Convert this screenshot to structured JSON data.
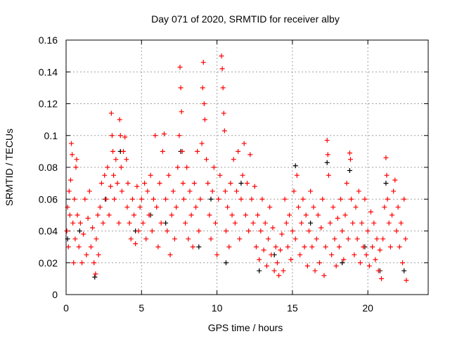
{
  "chart_data": {
    "type": "scatter",
    "title": "Day 071 of 2020, SRMTID for receiver alby",
    "xlabel": "GPS time / hours",
    "ylabel": "SRMTID / TECUs",
    "xlim": [
      0,
      24
    ],
    "ylim": [
      0,
      0.16
    ],
    "xticks": [
      0,
      5,
      10,
      15,
      20
    ],
    "yticks": [
      0,
      0.02,
      0.04,
      0.06,
      0.08,
      0.1,
      0.12,
      0.14,
      0.16
    ],
    "ytick_labels": [
      "0",
      "0.02",
      "0.04",
      "0.06",
      "0.08",
      "0.1",
      "0.12",
      "0.14",
      "0.16"
    ],
    "grid": true,
    "legend": "none",
    "series": [
      {
        "name": "series-black",
        "color": "#000000",
        "points": [
          [
            0.1,
            0.035
          ],
          [
            0.9,
            0.04
          ],
          [
            1.9,
            0.011
          ],
          [
            2.6,
            0.06
          ],
          [
            3.6,
            0.09
          ],
          [
            4.6,
            0.04
          ],
          [
            5.6,
            0.05
          ],
          [
            6.6,
            0.045
          ],
          [
            7.6,
            0.09
          ],
          [
            8.8,
            0.03
          ],
          [
            9.6,
            0.06
          ],
          [
            10.6,
            0.02
          ],
          [
            11.6,
            0.07
          ],
          [
            12.8,
            0.015
          ],
          [
            13.8,
            0.025
          ],
          [
            15.2,
            0.081
          ],
          [
            16.2,
            0.045
          ],
          [
            17.3,
            0.083
          ],
          [
            18.3,
            0.02
          ],
          [
            18.8,
            0.078
          ],
          [
            19.8,
            0.03
          ],
          [
            20.8,
            0.015
          ],
          [
            21.2,
            0.07
          ],
          [
            22.4,
            0.015
          ]
        ]
      },
      {
        "name": "series-red",
        "color": "#ff0000",
        "points": [
          [
            0.05,
            0.04
          ],
          [
            0.1,
            0.055
          ],
          [
            0.15,
            0.03
          ],
          [
            0.2,
            0.065
          ],
          [
            0.25,
            0.05
          ],
          [
            0.3,
            0.072
          ],
          [
            0.35,
            0.095
          ],
          [
            0.4,
            0.088
          ],
          [
            0.45,
            0.045
          ],
          [
            0.5,
            0.02
          ],
          [
            0.55,
            0.06
          ],
          [
            0.6,
            0.035
          ],
          [
            0.65,
            0.08
          ],
          [
            0.7,
            0.085
          ],
          [
            0.75,
            0.05
          ],
          [
            0.85,
            0.03
          ],
          [
            0.95,
            0.045
          ],
          [
            1.05,
            0.02
          ],
          [
            1.15,
            0.038
          ],
          [
            1.25,
            0.06
          ],
          [
            1.35,
            0.025
          ],
          [
            1.45,
            0.048
          ],
          [
            1.55,
            0.065
          ],
          [
            1.65,
            0.03
          ],
          [
            1.75,
            0.042
          ],
          [
            1.85,
            0.02
          ],
          [
            1.95,
            0.013
          ],
          [
            2.0,
            0.035
          ],
          [
            2.1,
            0.05
          ],
          [
            2.15,
            0.025
          ],
          [
            2.25,
            0.055
          ],
          [
            2.35,
            0.07
          ],
          [
            2.45,
            0.045
          ],
          [
            2.55,
            0.075
          ],
          [
            2.65,
            0.06
          ],
          [
            2.75,
            0.08
          ],
          [
            2.85,
            0.05
          ],
          [
            2.95,
            0.068
          ],
          [
            3.0,
            0.114
          ],
          [
            3.05,
            0.1
          ],
          [
            3.1,
            0.09
          ],
          [
            3.15,
            0.075
          ],
          [
            3.2,
            0.06
          ],
          [
            3.3,
            0.085
          ],
          [
            3.4,
            0.07
          ],
          [
            3.5,
            0.045
          ],
          [
            3.55,
            0.11
          ],
          [
            3.6,
            0.1
          ],
          [
            3.65,
            0.08
          ],
          [
            3.7,
            0.065
          ],
          [
            3.8,
            0.09
          ],
          [
            3.9,
            0.099
          ],
          [
            4.0,
            0.085
          ],
          [
            4.05,
            0.055
          ],
          [
            4.1,
            0.07
          ],
          [
            4.2,
            0.045
          ],
          [
            4.3,
            0.035
          ],
          [
            4.4,
            0.06
          ],
          [
            4.5,
            0.05
          ],
          [
            4.6,
            0.032
          ],
          [
            4.7,
            0.068
          ],
          [
            4.8,
            0.04
          ],
          [
            4.9,
            0.055
          ],
          [
            5.0,
            0.06
          ],
          [
            5.1,
            0.045
          ],
          [
            5.2,
            0.07
          ],
          [
            5.3,
            0.035
          ],
          [
            5.4,
            0.065
          ],
          [
            5.5,
            0.05
          ],
          [
            5.6,
            0.075
          ],
          [
            5.7,
            0.04
          ],
          [
            5.8,
            0.06
          ],
          [
            5.9,
            0.1
          ],
          [
            6.0,
            0.055
          ],
          [
            6.1,
            0.03
          ],
          [
            6.2,
            0.07
          ],
          [
            6.3,
            0.045
          ],
          [
            6.4,
            0.09
          ],
          [
            6.5,
            0.101
          ],
          [
            6.6,
            0.06
          ],
          [
            6.7,
            0.04
          ],
          [
            6.8,
            0.075
          ],
          [
            6.9,
            0.025
          ],
          [
            7.0,
            0.05
          ],
          [
            7.1,
            0.065
          ],
          [
            7.2,
            0.035
          ],
          [
            7.3,
            0.055
          ],
          [
            7.4,
            0.08
          ],
          [
            7.5,
            0.1
          ],
          [
            7.55,
            0.143
          ],
          [
            7.6,
            0.13
          ],
          [
            7.65,
            0.115
          ],
          [
            7.7,
            0.09
          ],
          [
            7.75,
            0.07
          ],
          [
            7.8,
            0.06
          ],
          [
            7.9,
            0.045
          ],
          [
            8.0,
            0.08
          ],
          [
            8.1,
            0.035
          ],
          [
            8.2,
            0.065
          ],
          [
            8.3,
            0.05
          ],
          [
            8.4,
            0.03
          ],
          [
            8.5,
            0.07
          ],
          [
            8.6,
            0.055
          ],
          [
            8.7,
            0.09
          ],
          [
            8.8,
            0.04
          ],
          [
            8.9,
            0.06
          ],
          [
            9.0,
            0.095
          ],
          [
            9.05,
            0.13
          ],
          [
            9.1,
            0.146
          ],
          [
            9.15,
            0.12
          ],
          [
            9.2,
            0.11
          ],
          [
            9.3,
            0.085
          ],
          [
            9.4,
            0.07
          ],
          [
            9.5,
            0.05
          ],
          [
            9.6,
            0.035
          ],
          [
            9.7,
            0.065
          ],
          [
            9.8,
            0.08
          ],
          [
            9.9,
            0.045
          ],
          [
            10.0,
            0.025
          ],
          [
            10.1,
            0.06
          ],
          [
            10.2,
            0.075
          ],
          [
            10.3,
            0.15
          ],
          [
            10.35,
            0.142
          ],
          [
            10.4,
            0.13
          ],
          [
            10.45,
            0.114
          ],
          [
            10.5,
            0.103
          ],
          [
            10.55,
            0.065
          ],
          [
            10.6,
            0.04
          ],
          [
            10.7,
            0.055
          ],
          [
            10.8,
            0.03
          ],
          [
            10.9,
            0.07
          ],
          [
            11.0,
            0.05
          ],
          [
            11.1,
            0.085
          ],
          [
            11.2,
            0.045
          ],
          [
            11.3,
            0.065
          ],
          [
            11.4,
            0.09
          ],
          [
            11.5,
            0.035
          ],
          [
            11.6,
            0.06
          ],
          [
            11.7,
            0.075
          ],
          [
            11.8,
            0.095
          ],
          [
            11.9,
            0.05
          ],
          [
            12.0,
            0.07
          ],
          [
            12.1,
            0.04
          ],
          [
            12.2,
            0.088
          ],
          [
            12.3,
            0.06
          ],
          [
            12.4,
            0.045
          ],
          [
            12.5,
            0.068
          ],
          [
            12.6,
            0.03
          ],
          [
            12.7,
            0.05
          ],
          [
            12.8,
            0.022
          ],
          [
            12.9,
            0.04
          ],
          [
            13.0,
            0.06
          ],
          [
            13.1,
            0.028
          ],
          [
            13.2,
            0.045
          ],
          [
            13.3,
            0.018
          ],
          [
            13.4,
            0.035
          ],
          [
            13.5,
            0.055
          ],
          [
            13.6,
            0.025
          ],
          [
            13.7,
            0.042
          ],
          [
            13.8,
            0.015
          ],
          [
            13.9,
            0.03
          ],
          [
            14.0,
            0.02
          ],
          [
            14.1,
            0.012
          ],
          [
            14.2,
            0.028
          ],
          [
            14.3,
            0.038
          ],
          [
            14.4,
            0.015
          ],
          [
            14.5,
            0.06
          ],
          [
            14.6,
            0.045
          ],
          [
            14.7,
            0.03
          ],
          [
            14.8,
            0.05
          ],
          [
            14.9,
            0.022
          ],
          [
            15.0,
            0.04
          ],
          [
            15.1,
            0.065
          ],
          [
            15.2,
            0.035
          ],
          [
            15.3,
            0.075
          ],
          [
            15.4,
            0.055
          ],
          [
            15.5,
            0.025
          ],
          [
            15.6,
            0.045
          ],
          [
            15.7,
            0.06
          ],
          [
            15.8,
            0.03
          ],
          [
            15.9,
            0.05
          ],
          [
            16.0,
            0.018
          ],
          [
            16.1,
            0.04
          ],
          [
            16.2,
            0.065
          ],
          [
            16.3,
            0.03
          ],
          [
            16.4,
            0.055
          ],
          [
            16.5,
            0.015
          ],
          [
            16.6,
            0.035
          ],
          [
            16.7,
            0.05
          ],
          [
            16.8,
            0.02
          ],
          [
            16.9,
            0.042
          ],
          [
            17.0,
            0.06
          ],
          [
            17.1,
            0.012
          ],
          [
            17.2,
            0.03
          ],
          [
            17.3,
            0.097
          ],
          [
            17.35,
            0.088
          ],
          [
            17.4,
            0.075
          ],
          [
            17.5,
            0.045
          ],
          [
            17.6,
            0.025
          ],
          [
            17.7,
            0.055
          ],
          [
            17.8,
            0.035
          ],
          [
            17.9,
            0.018
          ],
          [
            18.0,
            0.048
          ],
          [
            18.1,
            0.03
          ],
          [
            18.2,
            0.06
          ],
          [
            18.3,
            0.04
          ],
          [
            18.4,
            0.022
          ],
          [
            18.5,
            0.05
          ],
          [
            18.6,
            0.07
          ],
          [
            18.7,
            0.035
          ],
          [
            18.8,
            0.089
          ],
          [
            18.85,
            0.085
          ],
          [
            18.9,
            0.06
          ],
          [
            19.0,
            0.045
          ],
          [
            19.1,
            0.025
          ],
          [
            19.2,
            0.055
          ],
          [
            19.3,
            0.035
          ],
          [
            19.4,
            0.065
          ],
          [
            19.5,
            0.02
          ],
          [
            19.6,
            0.045
          ],
          [
            19.7,
            0.03
          ],
          [
            19.8,
            0.06
          ],
          [
            19.9,
            0.025
          ],
          [
            20.0,
            0.04
          ],
          [
            20.1,
            0.018
          ],
          [
            20.2,
            0.052
          ],
          [
            20.3,
            0.03
          ],
          [
            20.4,
            0.045
          ],
          [
            20.5,
            0.022
          ],
          [
            20.6,
            0.035
          ],
          [
            20.7,
            0.015
          ],
          [
            20.8,
            0.028
          ],
          [
            20.9,
            0.01
          ],
          [
            21.0,
            0.035
          ],
          [
            21.1,
            0.055
          ],
          [
            21.2,
            0.086
          ],
          [
            21.25,
            0.075
          ],
          [
            21.3,
            0.06
          ],
          [
            21.4,
            0.045
          ],
          [
            21.5,
            0.03
          ],
          [
            21.6,
            0.05
          ],
          [
            21.7,
            0.065
          ],
          [
            21.8,
            0.072
          ],
          [
            21.9,
            0.04
          ],
          [
            22.0,
            0.055
          ],
          [
            22.1,
            0.03
          ],
          [
            22.2,
            0.045
          ],
          [
            22.3,
            0.02
          ],
          [
            22.4,
            0.06
          ],
          [
            22.5,
            0.035
          ],
          [
            22.55,
            0.009
          ]
        ]
      }
    ]
  }
}
